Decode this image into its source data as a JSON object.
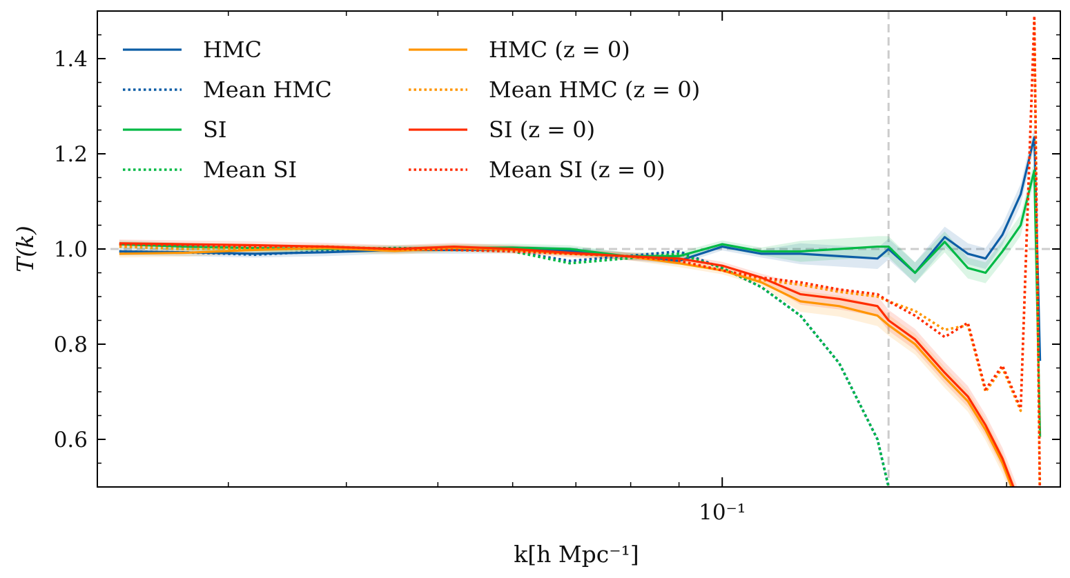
{
  "chart_data": {
    "type": "line",
    "title": "",
    "xlabel": "k[h Mpc⁻¹]",
    "ylabel": "T(k)",
    "xscale": "log",
    "xlim": [
      0.0218,
      0.228
    ],
    "ylim": [
      0.5,
      1.5
    ],
    "yticks": [
      0.6,
      0.8,
      1.0,
      1.2,
      1.4
    ],
    "ytick_labels": [
      "0.6",
      "0.8",
      "1.0",
      "1.2",
      "1.4"
    ],
    "xticks_major": [
      0.1
    ],
    "xtick_major_labels": [
      "10⁻¹"
    ],
    "hline": 1.0,
    "vline": 0.15,
    "legend_position": "upper-left",
    "colors": {
      "blue": "#0c5da5",
      "green": "#00b945",
      "orange": "#ff9500",
      "red": "#ff2c00",
      "reference": "#cccccc"
    },
    "x": [
      0.023,
      0.027,
      0.032,
      0.038,
      0.045,
      0.052,
      0.06,
      0.069,
      0.079,
      0.09,
      0.1,
      0.11,
      0.121,
      0.133,
      0.146,
      0.15,
      0.16,
      0.172,
      0.182,
      0.19,
      0.198,
      0.207,
      0.214,
      0.217
    ],
    "series": [
      {
        "name": "HMC",
        "color": "#0c5da5",
        "style": "solid",
        "band": true,
        "values": [
          0.995,
          0.993,
          0.99,
          0.993,
          0.998,
          0.998,
          0.999,
          0.996,
          0.985,
          0.975,
          1.005,
          0.99,
          0.99,
          0.985,
          0.98,
          1.0,
          0.95,
          1.025,
          0.99,
          0.98,
          1.03,
          1.115,
          1.235,
          0.765
        ]
      },
      {
        "name": "Mean HMC",
        "color": "#0c5da5",
        "style": "dotted",
        "band": false,
        "values": [
          0.995,
          0.993,
          0.988,
          0.995,
          1.002,
          1.0,
          0.995,
          0.975,
          0.985,
          0.995,
          0.96,
          0.92,
          0.86,
          0.76,
          0.6,
          0.5,
          null,
          null,
          null,
          null,
          null,
          null,
          null,
          null
        ]
      },
      {
        "name": "SI",
        "color": "#00b945",
        "style": "solid",
        "band": true,
        "values": [
          1.01,
          1.005,
          1.002,
          1.0,
          1.0,
          1.002,
          1.003,
          1.0,
          0.985,
          0.985,
          1.01,
          0.995,
          0.995,
          1.0,
          1.005,
          1.005,
          0.95,
          1.015,
          0.96,
          0.95,
          0.995,
          1.05,
          1.165,
          0.605
        ]
      },
      {
        "name": "Mean SI",
        "color": "#00b945",
        "style": "dotted",
        "band": false,
        "values": [
          1.01,
          1.005,
          1.0,
          1.0,
          1.002,
          1.0,
          0.995,
          0.97,
          0.98,
          0.99,
          0.96,
          0.92,
          0.86,
          0.76,
          0.6,
          0.5,
          null,
          null,
          null,
          null,
          null,
          null,
          null,
          null
        ]
      },
      {
        "name": "HMC (z = 0)",
        "color": "#ff9500",
        "style": "solid",
        "band": true,
        "values": [
          0.99,
          0.992,
          0.998,
          1.002,
          0.996,
          1.002,
          0.998,
          0.99,
          0.985,
          0.97,
          0.955,
          0.93,
          0.89,
          0.88,
          0.86,
          0.84,
          0.8,
          0.73,
          0.68,
          0.62,
          0.55,
          0.45,
          null,
          null
        ]
      },
      {
        "name": "Mean HMC (z = 0)",
        "color": "#ff9500",
        "style": "dotted",
        "band": false,
        "values": [
          1.005,
          1.0,
          1.002,
          1.005,
          0.998,
          0.998,
          0.995,
          0.99,
          0.985,
          0.975,
          0.955,
          0.935,
          0.925,
          0.91,
          0.9,
          0.89,
          0.87,
          0.83,
          0.84,
          0.7,
          0.75,
          0.66,
          1.48,
          0.45
        ]
      },
      {
        "name": "SI (z = 0)",
        "color": "#ff2c00",
        "style": "solid",
        "band": true,
        "values": [
          1.012,
          1.01,
          1.008,
          1.005,
          1.0,
          1.005,
          1.0,
          0.992,
          0.985,
          0.98,
          0.965,
          0.94,
          0.905,
          0.895,
          0.88,
          0.85,
          0.81,
          0.74,
          0.69,
          0.63,
          0.56,
          0.46,
          null,
          null
        ]
      },
      {
        "name": "Mean SI (z = 0)",
        "color": "#ff2c00",
        "style": "dotted",
        "band": false,
        "values": [
          1.01,
          1.008,
          1.005,
          1.005,
          1.0,
          0.998,
          0.995,
          0.99,
          0.985,
          0.975,
          0.955,
          0.94,
          0.93,
          0.915,
          0.905,
          0.89,
          0.86,
          0.815,
          0.845,
          0.705,
          0.755,
          0.665,
          1.49,
          0.46
        ]
      }
    ]
  }
}
